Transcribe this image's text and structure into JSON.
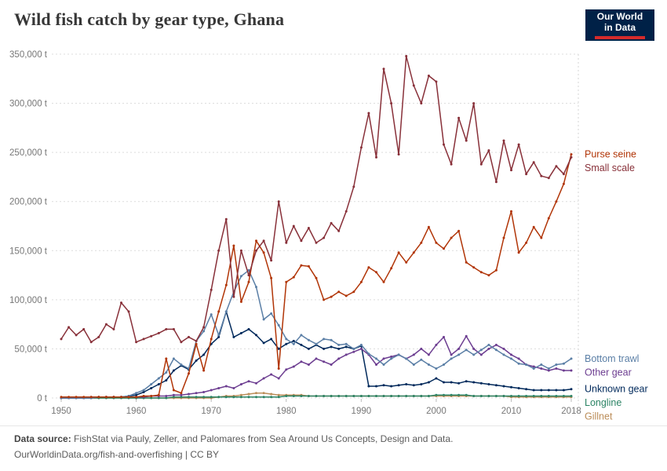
{
  "header": {
    "title": "Wild fish catch by gear type, Ghana",
    "logo": {
      "line1": "Our World",
      "line2": "in Data",
      "bg_color": "#002147",
      "accent_color": "#D42B2B"
    }
  },
  "chart_data": {
    "type": "line",
    "title": "Wild fish catch by gear type, Ghana",
    "xlabel": "",
    "ylabel": "tonnes",
    "y_unit": "t",
    "ylim": [
      0,
      350000
    ],
    "y_ticks": [
      0,
      50000,
      100000,
      150000,
      200000,
      250000,
      300000,
      350000
    ],
    "x_ticks": [
      1950,
      1960,
      1970,
      1980,
      1990,
      2000,
      2010,
      2018
    ],
    "grid": true,
    "legend_position": "right-end-labels",
    "years": [
      1950,
      1951,
      1952,
      1953,
      1954,
      1955,
      1956,
      1957,
      1958,
      1959,
      1960,
      1961,
      1962,
      1963,
      1964,
      1965,
      1966,
      1967,
      1968,
      1969,
      1970,
      1971,
      1972,
      1973,
      1974,
      1975,
      1976,
      1977,
      1978,
      1979,
      1980,
      1981,
      1982,
      1983,
      1984,
      1985,
      1986,
      1987,
      1988,
      1989,
      1990,
      1991,
      1992,
      1993,
      1994,
      1995,
      1996,
      1997,
      1998,
      1999,
      2000,
      2001,
      2002,
      2003,
      2004,
      2005,
      2006,
      2007,
      2008,
      2009,
      2010,
      2011,
      2012,
      2013,
      2014,
      2015,
      2016,
      2017,
      2018
    ],
    "series": [
      {
        "name": "Gillnet",
        "color": "#BC8E5A",
        "values": [
          0,
          0,
          0,
          0,
          0,
          0,
          0,
          0,
          0,
          0,
          0,
          0,
          0,
          0,
          0,
          0,
          0,
          0,
          0,
          0,
          0,
          1000,
          2000,
          2000,
          3000,
          4000,
          5000,
          5000,
          4000,
          3000,
          3000,
          3000,
          3000,
          2000,
          2000,
          2000,
          2000,
          2000,
          2000,
          2000,
          2000,
          2000,
          2000,
          2000,
          2000,
          2000,
          2000,
          2000,
          2000,
          2000,
          2000,
          2000,
          2000,
          2000,
          2000,
          2000,
          2000,
          2000,
          2000,
          2000,
          1000,
          1000,
          1000,
          1000,
          1000,
          1000,
          1000,
          1000,
          1000
        ]
      },
      {
        "name": "Longline",
        "color": "#2C8465",
        "values": [
          0,
          0,
          0,
          0,
          0,
          0,
          0,
          0,
          0,
          0,
          0,
          0,
          0,
          0,
          0,
          1000,
          1000,
          1000,
          1000,
          1000,
          1000,
          1000,
          1000,
          1000,
          1000,
          1000,
          1000,
          1000,
          1000,
          1000,
          2000,
          2000,
          2000,
          2000,
          2000,
          2000,
          2000,
          2000,
          2000,
          2000,
          2000,
          2000,
          2000,
          2000,
          2000,
          2000,
          2000,
          2000,
          2000,
          2000,
          3000,
          3000,
          3000,
          3000,
          3000,
          2000,
          2000,
          2000,
          2000,
          2000,
          2000,
          2000,
          2000,
          2000,
          2000,
          2000,
          2000,
          2000,
          2000
        ]
      },
      {
        "name": "Unknown gear",
        "color": "#00295B",
        "values": [
          0,
          0,
          0,
          0,
          0,
          1000,
          1000,
          1000,
          1000,
          2000,
          3000,
          6000,
          10000,
          14000,
          18000,
          28000,
          33000,
          29000,
          38000,
          44000,
          55000,
          62000,
          88000,
          62000,
          66000,
          70000,
          64000,
          56000,
          60000,
          50000,
          55000,
          58000,
          54000,
          50000,
          54000,
          50000,
          52000,
          50000,
          52000,
          50000,
          53000,
          12000,
          12000,
          13000,
          12000,
          13000,
          14000,
          13000,
          14000,
          16000,
          20000,
          16000,
          16000,
          15000,
          17000,
          16000,
          15000,
          14000,
          13000,
          12000,
          11000,
          10000,
          9000,
          8000,
          8000,
          8000,
          8000,
          8000,
          9000
        ]
      },
      {
        "name": "Other gear",
        "color": "#6D3E91",
        "values": [
          0,
          0,
          0,
          0,
          1000,
          1000,
          1000,
          1000,
          1000,
          1000,
          1000,
          1000,
          2000,
          2000,
          2000,
          3000,
          3000,
          4000,
          5000,
          6000,
          8000,
          10000,
          12000,
          10000,
          14000,
          17000,
          15000,
          20000,
          24000,
          20000,
          29000,
          32000,
          37000,
          34000,
          40000,
          37000,
          34000,
          40000,
          44000,
          47000,
          50000,
          44000,
          34000,
          40000,
          42000,
          44000,
          40000,
          44000,
          50000,
          44000,
          54000,
          62000,
          44000,
          50000,
          63000,
          50000,
          44000,
          50000,
          54000,
          50000,
          44000,
          40000,
          34000,
          32000,
          30000,
          28000,
          30000,
          28000,
          28000
        ]
      },
      {
        "name": "Bottom trawl",
        "color": "#5B7FA6",
        "values": [
          0,
          0,
          0,
          0,
          0,
          1000,
          1000,
          1000,
          1000,
          2000,
          5000,
          8000,
          14000,
          20000,
          26000,
          40000,
          34000,
          30000,
          58000,
          68000,
          85000,
          64000,
          88000,
          108000,
          124000,
          130000,
          113000,
          80000,
          86000,
          74000,
          60000,
          55000,
          64000,
          59000,
          55000,
          60000,
          59000,
          54000,
          55000,
          50000,
          54000,
          45000,
          40000,
          34000,
          40000,
          44000,
          40000,
          34000,
          39000,
          34000,
          30000,
          34000,
          40000,
          44000,
          49000,
          44000,
          49000,
          54000,
          49000,
          44000,
          40000,
          35000,
          34000,
          30000,
          34000,
          30000,
          34000,
          35000,
          40000
        ]
      },
      {
        "name": "Purse seine",
        "color": "#B13507",
        "values": [
          1000,
          1000,
          1000,
          1000,
          1000,
          1000,
          1000,
          1000,
          1000,
          1000,
          1000,
          2000,
          2000,
          3000,
          40000,
          8000,
          5000,
          25000,
          55000,
          28000,
          60000,
          88000,
          115000,
          155000,
          98000,
          118000,
          160000,
          148000,
          122000,
          30000,
          118000,
          123000,
          135000,
          134000,
          122000,
          100000,
          103000,
          108000,
          104000,
          108000,
          118000,
          133000,
          128000,
          118000,
          132000,
          148000,
          138000,
          148000,
          158000,
          174000,
          158000,
          152000,
          163000,
          170000,
          138000,
          133000,
          128000,
          125000,
          130000,
          163000,
          190000,
          148000,
          158000,
          174000,
          163000,
          183000,
          200000,
          218000,
          248000
        ]
      },
      {
        "name": "Small scale",
        "color": "#883039",
        "values": [
          60000,
          72000,
          64000,
          70000,
          57000,
          62000,
          75000,
          70000,
          97000,
          88000,
          57000,
          60000,
          63000,
          66000,
          70000,
          70000,
          57000,
          62000,
          58000,
          72000,
          110000,
          150000,
          182000,
          103000,
          150000,
          125000,
          150000,
          160000,
          140000,
          200000,
          158000,
          175000,
          160000,
          173000,
          158000,
          163000,
          178000,
          170000,
          190000,
          215000,
          255000,
          290000,
          245000,
          335000,
          300000,
          248000,
          348000,
          318000,
          300000,
          328000,
          322000,
          258000,
          238000,
          285000,
          262000,
          300000,
          238000,
          252000,
          220000,
          262000,
          232000,
          258000,
          228000,
          240000,
          226000,
          224000,
          236000,
          228000,
          245000
        ]
      }
    ]
  },
  "footer": {
    "source_label": "Data source:",
    "source_text": "FishStat via Pauly, Zeller, and Palomares from Sea Around Us Concepts, Design and Data.",
    "link": "OurWorldinData.org/fish-and-overfishing",
    "license_suffix": " | CC BY"
  }
}
